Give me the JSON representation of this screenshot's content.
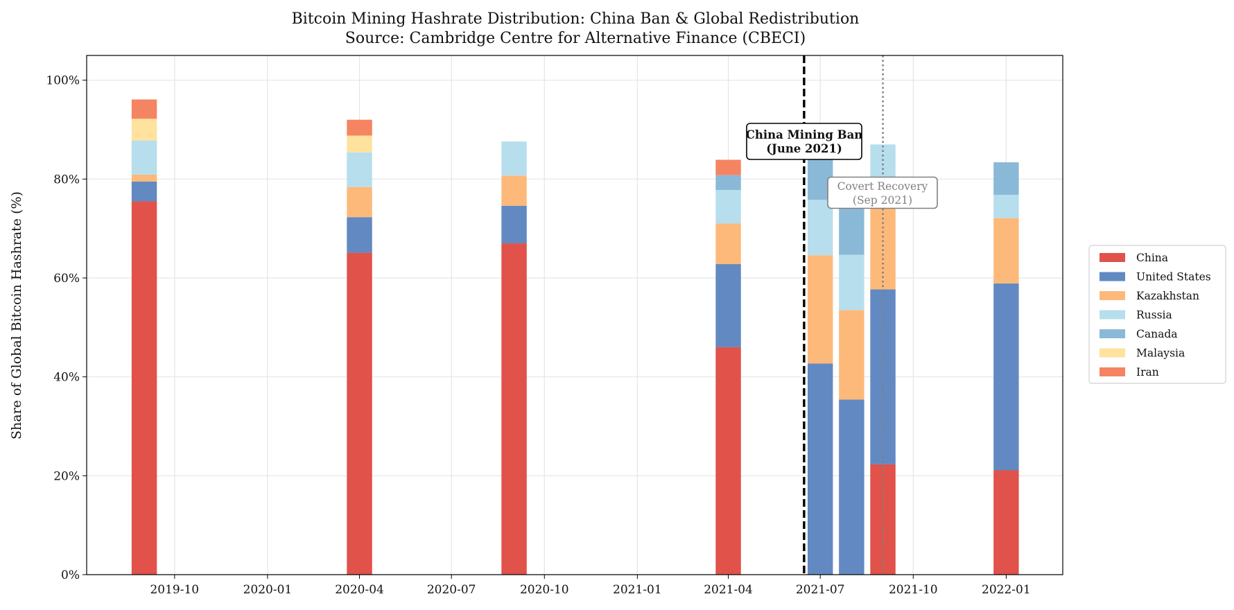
{
  "chart_data": {
    "type": "bar",
    "stacked": true,
    "title": "Bitcoin Mining Hashrate Distribution: China Ban & Global Redistribution",
    "subtitle": "Source: Cambridge Centre for Alternative Finance (CBECI)",
    "xlabel": "",
    "ylabel": "Share of Global Bitcoin Hashrate (%)",
    "ylim": [
      0,
      105
    ],
    "xlim": [
      "2019-07-06",
      "2022-02-26"
    ],
    "bar_width_days": 25,
    "grid": true,
    "legend_position": "right-center",
    "x_ticks": [
      "2019-10",
      "2020-01",
      "2020-04",
      "2020-07",
      "2020-10",
      "2021-01",
      "2021-04",
      "2021-07",
      "2021-10",
      "2022-01"
    ],
    "y_ticks": [
      0,
      20,
      40,
      60,
      80,
      100
    ],
    "y_tick_labels": [
      "0%",
      "20%",
      "40%",
      "60%",
      "80%",
      "100%"
    ],
    "x": [
      "2019-09-01",
      "2020-04-01",
      "2020-09-01",
      "2021-04-01",
      "2021-07-01",
      "2021-08-01",
      "2021-09-01",
      "2022-01-01"
    ],
    "series": [
      {
        "name": "China",
        "color": "#e0524a",
        "values": [
          75.5,
          65.1,
          67.0,
          46.0,
          0,
          0,
          22.3,
          21.1
        ]
      },
      {
        "name": "United States",
        "color": "#6289c1",
        "values": [
          4.0,
          7.2,
          7.6,
          16.8,
          42.7,
          35.4,
          35.4,
          37.8
        ]
      },
      {
        "name": "Kazakhstan",
        "color": "#fdb97a",
        "values": [
          1.4,
          6.1,
          6.1,
          8.2,
          21.9,
          18.1,
          18.1,
          13.2
        ]
      },
      {
        "name": "Russia",
        "color": "#b7deed",
        "values": [
          6.9,
          7.0,
          6.9,
          6.8,
          11.2,
          11.2,
          11.2,
          4.7
        ]
      },
      {
        "name": "Canada",
        "color": "#8ab9d7",
        "values": [
          0,
          0,
          0,
          3.0,
          9.6,
          9.6,
          0,
          6.6
        ]
      },
      {
        "name": "Malaysia",
        "color": "#fee29e",
        "values": [
          4.4,
          3.4,
          0,
          0,
          0,
          0,
          0,
          0
        ]
      },
      {
        "name": "Iran",
        "color": "#f58462",
        "values": [
          3.9,
          3.2,
          0,
          3.1,
          0,
          0,
          0,
          0
        ]
      }
    ],
    "annotations": [
      {
        "text_line1": "China Mining Ban",
        "text_line2": "(June 2021)",
        "date": "2021-06-15",
        "line_style": "dashed",
        "line_color": "#000000"
      },
      {
        "text_line1": "Covert Recovery",
        "text_line2": "(Sep 2021)",
        "date": "2021-09-01",
        "line_style": "dotted",
        "line_color": "#808080"
      }
    ]
  }
}
